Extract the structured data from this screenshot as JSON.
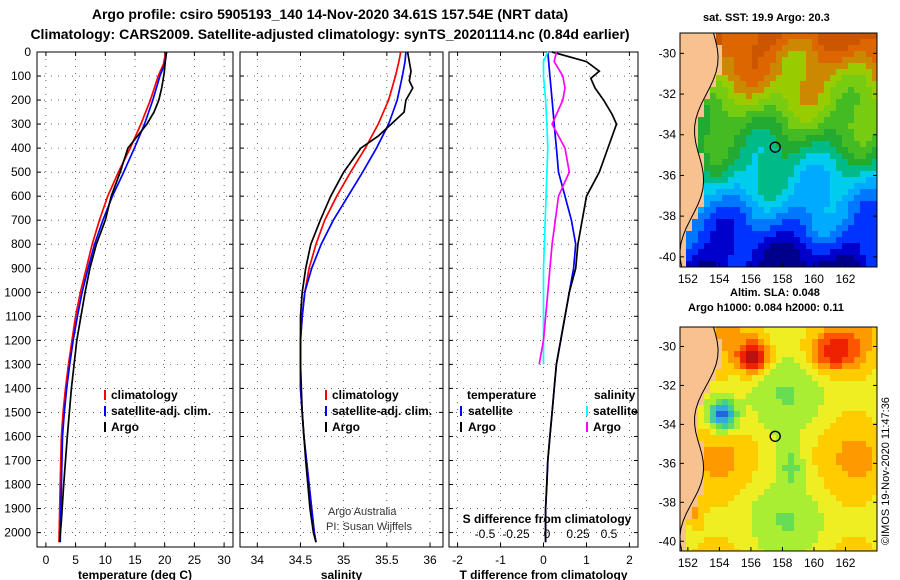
{
  "header": {
    "title_line1": "Argo profile: csiro 5905193_140 14-Nov-2020 34.61S 157.54E (NRT data)",
    "title_line2": "Climatology: CARS2009. Satellite-adjusted climatology: synTS_20201114.nc (0.84d earlier)"
  },
  "depth_axis": {
    "ticks": [
      0,
      100,
      200,
      300,
      400,
      500,
      600,
      700,
      800,
      900,
      1000,
      1100,
      1200,
      1300,
      1400,
      1500,
      1600,
      1700,
      1800,
      1900,
      2000
    ],
    "range": [
      0,
      2060
    ]
  },
  "colors": {
    "climatology": "#ff0000",
    "satellite_adj": "#0000ff",
    "argo": "#000000",
    "sat_temp": "#0000ff",
    "sat_sal": "#00ffff",
    "argo_sal": "#ff00ff",
    "land": "#f7c190"
  },
  "chart_data": [
    {
      "type": "line",
      "name": "temperature",
      "xlabel": "temperature (deg C)",
      "xlim": [
        -1.5,
        31.5
      ],
      "xticks": [
        0,
        5,
        10,
        15,
        20,
        25,
        30
      ],
      "ylim": [
        0,
        2060
      ],
      "legend": [
        "climatology",
        "satellite-adj. clim.",
        "Argo"
      ],
      "series": [
        {
          "name": "climatology",
          "x": [
            20.2,
            19.8,
            18.9,
            17.6,
            16.0,
            14.2,
            12.2,
            10.4,
            9.0,
            7.8,
            6.8,
            5.8,
            5.0,
            4.4,
            3.8,
            3.3,
            2.9,
            2.6,
            2.4,
            2.2
          ],
          "y": [
            0,
            50,
            100,
            200,
            300,
            400,
            500,
            600,
            700,
            800,
            900,
            1000,
            1100,
            1200,
            1300,
            1400,
            1500,
            1600,
            1800,
            2040
          ]
        },
        {
          "name": "satellite-adj. clim.",
          "x": [
            20.3,
            20.0,
            19.2,
            18.0,
            16.6,
            14.9,
            13.1,
            11.2,
            9.6,
            8.2,
            7.1,
            6.1,
            5.3,
            4.6,
            4.0,
            3.5,
            3.1,
            2.8,
            2.6,
            2.4
          ],
          "y": [
            0,
            50,
            100,
            200,
            300,
            400,
            500,
            600,
            700,
            800,
            900,
            1000,
            1100,
            1200,
            1300,
            1400,
            1500,
            1600,
            1800,
            2040
          ]
        },
        {
          "name": "Argo",
          "x": [
            20.3,
            20.1,
            19.9,
            19.5,
            19.0,
            18.2,
            17.0,
            15.4,
            13.8,
            12.5,
            11.0,
            10.0,
            8.5,
            7.4,
            6.6,
            5.2,
            4.3,
            3.6,
            3.0,
            2.6,
            2.3
          ],
          "y": [
            0,
            40,
            90,
            150,
            200,
            250,
            300,
            350,
            400,
            500,
            600,
            700,
            800,
            900,
            1000,
            1200,
            1400,
            1600,
            1800,
            1950,
            2040
          ]
        }
      ]
    },
    {
      "type": "line",
      "name": "salinity",
      "xlabel": "salinity",
      "xlim": [
        33.8,
        36.15
      ],
      "xticks": [
        34,
        34.5,
        35,
        35.5,
        36
      ],
      "ylim": [
        0,
        2060
      ],
      "legend": [
        "climatology",
        "satellite-adj. clim.",
        "Argo"
      ],
      "annotation": [
        "Argo Australia",
        "PI: Susan Wijffels"
      ],
      "series": [
        {
          "name": "climatology",
          "x": [
            35.66,
            35.64,
            35.6,
            35.52,
            35.4,
            35.25,
            35.08,
            34.92,
            34.78,
            34.68,
            34.6,
            34.55,
            34.52,
            34.5,
            34.5,
            34.5,
            34.52,
            34.54,
            34.57,
            34.6,
            34.63,
            34.66,
            34.68
          ],
          "y": [
            0,
            40,
            100,
            200,
            300,
            400,
            500,
            600,
            700,
            800,
            900,
            1000,
            1100,
            1200,
            1300,
            1400,
            1500,
            1600,
            1700,
            1800,
            1900,
            2000,
            2040
          ]
        },
        {
          "name": "satellite-adj. clim.",
          "x": [
            35.72,
            35.71,
            35.68,
            35.62,
            35.52,
            35.38,
            35.22,
            35.05,
            34.88,
            34.74,
            34.63,
            34.55,
            34.52,
            34.5,
            34.5,
            34.5,
            34.52,
            34.54,
            34.57,
            34.6,
            34.63,
            34.66,
            34.68
          ],
          "y": [
            0,
            40,
            100,
            200,
            300,
            400,
            500,
            600,
            700,
            800,
            900,
            1000,
            1100,
            1200,
            1300,
            1400,
            1500,
            1600,
            1700,
            1800,
            1900,
            2000,
            2040
          ]
        },
        {
          "name": "Argo",
          "x": [
            35.74,
            35.76,
            35.78,
            35.76,
            35.8,
            35.72,
            35.7,
            35.55,
            35.4,
            35.2,
            35.0,
            34.85,
            34.73,
            34.62,
            34.56,
            34.52,
            34.5,
            34.5,
            34.52,
            34.56,
            34.61,
            34.65,
            34.68
          ],
          "y": [
            0,
            40,
            80,
            120,
            150,
            200,
            250,
            300,
            350,
            400,
            500,
            600,
            700,
            800,
            900,
            1000,
            1100,
            1300,
            1500,
            1700,
            1900,
            2000,
            2040
          ]
        }
      ]
    },
    {
      "type": "line",
      "name": "difference",
      "xlabel": "T difference from climatology",
      "x2label": "S difference from climatology",
      "xlim": [
        -2.2,
        2.2
      ],
      "xticks": [
        -2,
        -1,
        0,
        1,
        2
      ],
      "x2ticks": [
        -0.5,
        -0.25,
        0,
        0.25,
        0.5
      ],
      "x2tick_labels": [
        "-0.5",
        "-0.25",
        "0",
        "0.25",
        "0.5"
      ],
      "ylim": [
        0,
        2060
      ],
      "legend_temperature_title": "temperature",
      "legend_salinity_title": "salinity",
      "legend_temperature": [
        "satellite",
        "Argo"
      ],
      "legend_salinity": [
        "satellite",
        "Argo"
      ],
      "series": [
        {
          "name": "temperature satellite",
          "x": [
            0.1,
            0.15,
            0.2,
            0.25,
            0.3,
            0.35,
            0.5,
            0.65,
            0.75,
            0.7,
            0.6,
            0.5,
            0.4,
            0.3,
            0.25,
            0.2,
            0.15,
            0.1,
            0.08,
            0.05,
            0.05
          ],
          "y": [
            0,
            100,
            200,
            300,
            400,
            500,
            600,
            700,
            800,
            900,
            1000,
            1100,
            1200,
            1300,
            1400,
            1500,
            1600,
            1700,
            1800,
            1900,
            2040
          ]
        },
        {
          "name": "temperature Argo",
          "x": [
            0.2,
            1.0,
            1.3,
            1.1,
            1.2,
            1.4,
            1.6,
            1.7,
            1.5,
            1.3,
            1.0,
            0.9,
            0.8,
            0.75,
            0.6,
            0.4,
            0.3,
            0.25,
            0.2,
            0.15,
            0.1,
            0.05,
            0.05
          ],
          "y": [
            0,
            40,
            80,
            110,
            150,
            200,
            260,
            300,
            400,
            500,
            600,
            700,
            800,
            900,
            1000,
            1200,
            1300,
            1400,
            1500,
            1600,
            1700,
            1900,
            2040
          ]
        },
        {
          "name": "salinity satellite",
          "x": [
            0.1,
            0.0,
            0.0,
            0.05,
            0.08,
            0.1,
            0.08,
            0.06,
            0.04,
            0.02,
            0.0,
            0.0,
            0.0
          ],
          "y": [
            0,
            40,
            100,
            200,
            300,
            400,
            500,
            600,
            700,
            800,
            900,
            1200,
            1300
          ]
        },
        {
          "name": "salinity Argo",
          "x": [
            0.3,
            0.25,
            0.45,
            0.5,
            0.45,
            0.2,
            0.5,
            0.6,
            0.35,
            0.2,
            0.1,
            0.0,
            -0.1
          ],
          "y": [
            0,
            40,
            100,
            150,
            200,
            300,
            400,
            500,
            600,
            800,
            1000,
            1200,
            1300
          ]
        }
      ]
    },
    {
      "type": "heatmap",
      "name": "sat-sst-map",
      "title": "sat. SST: 19.9 Argo: 20.3",
      "xlim": [
        151.5,
        164
      ],
      "ylim": [
        -40.5,
        -29
      ],
      "xticks": [
        152,
        154,
        156,
        158,
        160,
        162
      ],
      "yticks": [
        -30,
        -32,
        -34,
        -36,
        -38,
        -40
      ],
      "float_position": {
        "lon": 157.54,
        "lat": -34.61
      }
    },
    {
      "type": "heatmap",
      "name": "sla-map",
      "title": "Altim. SLA: 0.048",
      "subtitle": "Argo h1000: 0.084 h2000: 0.11",
      "xlim": [
        151.5,
        164
      ],
      "ylim": [
        -40.5,
        -29
      ],
      "xticks": [
        152,
        154,
        156,
        158,
        160,
        162
      ],
      "yticks": [
        -30,
        -32,
        -34,
        -36,
        -38,
        -40
      ],
      "float_position": {
        "lon": 157.54,
        "lat": -34.61
      }
    }
  ],
  "credit": "©IMOS 19-Nov-2020 11:47:36"
}
